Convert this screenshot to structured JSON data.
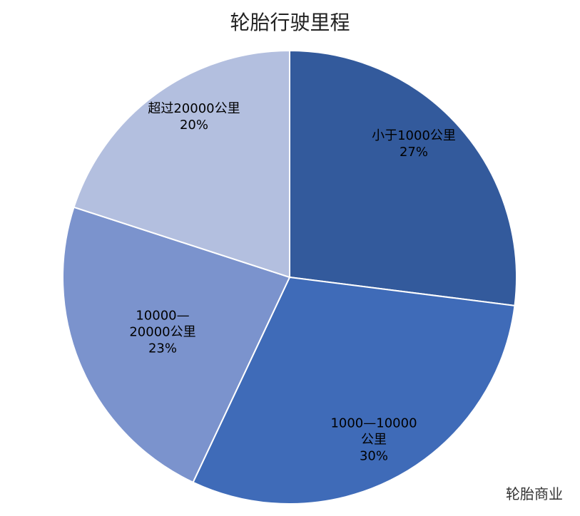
{
  "chart_data": {
    "type": "pie",
    "title": "轮胎行驶里程",
    "categories": [
      "小于1000公里",
      "1000—10000公里",
      "10000—20000公里",
      "超过20000公里"
    ],
    "values": [
      27,
      30,
      23,
      20
    ],
    "value_labels": [
      "27%",
      "30%",
      "23%",
      "20%"
    ],
    "colors": [
      "#335a9c",
      "#3f6bb8",
      "#7b93cd",
      "#b3bfdf"
    ]
  },
  "watermark": "轮胎商业"
}
